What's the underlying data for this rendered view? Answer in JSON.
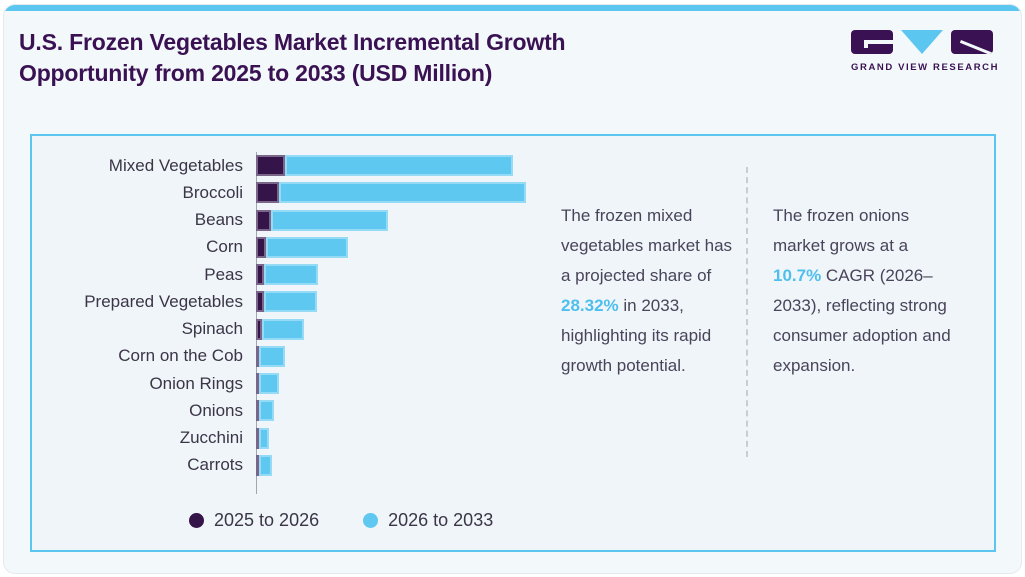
{
  "header": {
    "title_line1": "U.S. Frozen Vegetables Market Incremental Growth",
    "title_line2": "Opportunity from 2025 to 2033 (USD Million)",
    "brand": "GRAND VIEW RESEARCH"
  },
  "chart_data": {
    "type": "bar",
    "orientation": "horizontal",
    "stacked": true,
    "title": "U.S. Frozen Vegetables Market Incremental Growth Opportunity from 2025 to 2033 (USD Million)",
    "units": "USD Million (value axis not labeled; values are relative bar lengths)",
    "legend_position": "bottom",
    "categories": [
      "Mixed Vegetables",
      "Broccoli",
      "Beans",
      "Corn",
      "Peas",
      "Prepared Vegetables",
      "Spinach",
      "Corn on the Cob",
      "Onion Rings",
      "Onions",
      "Zucchini",
      "Carrots"
    ],
    "series": [
      {
        "name": "2025 to 2026",
        "color": "#341449",
        "values": [
          29,
          23,
          15,
          10,
          8,
          8,
          6,
          3,
          3,
          2.5,
          2.5,
          2.5
        ]
      },
      {
        "name": "2026 to 2033",
        "color": "#5ec8f1",
        "values": [
          228,
          247,
          117,
          82,
          54,
          53,
          42,
          26,
          20,
          15.5,
          10.5,
          13.5
        ]
      }
    ]
  },
  "callouts": [
    {
      "before": "The frozen mixed vegetables market has a projected share of ",
      "highlight": "28.32%",
      "after": " in 2033, highlighting its rapid growth potential."
    },
    {
      "before": "The frozen onions market grows at a ",
      "highlight": "10.7%",
      "after": " CAGR (2026–2033), reflecting strong consumer adoption and expansion."
    }
  ],
  "colors": {
    "accent_cyan": "#5bc6f0",
    "bar_dark_purple": "#341449",
    "bar_sky_blue": "#5ec8f1",
    "title_purple": "#3a1253",
    "text_dark": "#3b3547",
    "highlight_blue": "#4fbfef",
    "panel_background": "#eff5f9",
    "card_background": "#f3f8fb"
  }
}
